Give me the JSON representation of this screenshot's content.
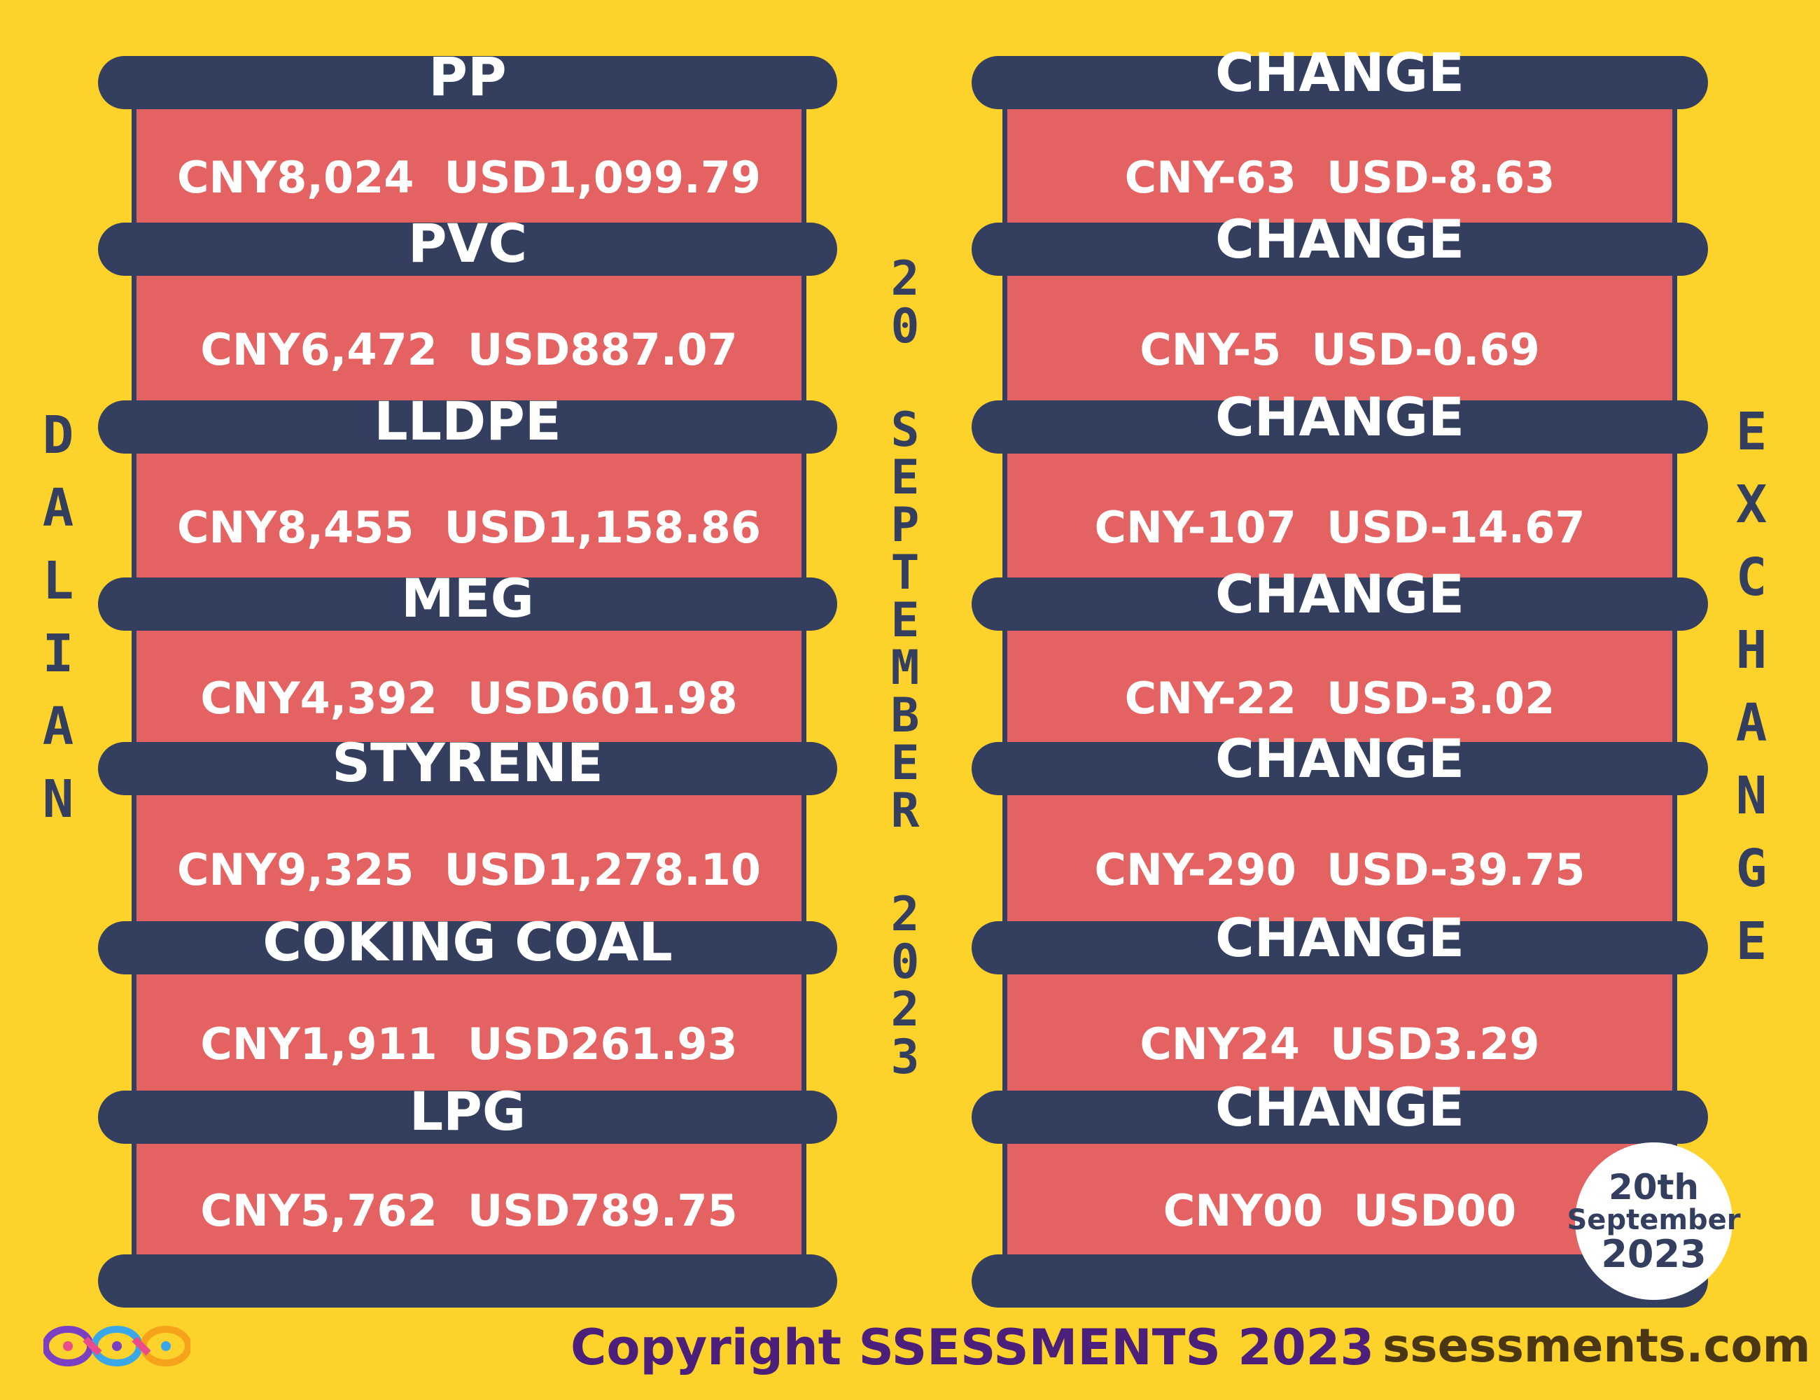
{
  "left_label": "DALIAN",
  "right_label": "EXCHANGE",
  "center_date": {
    "day": "20",
    "month": "SEPTEMBER",
    "year": "2023"
  },
  "commodities": [
    {
      "name": "PP",
      "price": "CNY8,024  USD1,099.79",
      "change_title": "CHANGE",
      "change": "CNY-63  USD-8.63"
    },
    {
      "name": "PVC",
      "price": "CNY6,472  USD887.07",
      "change_title": "CHANGE",
      "change": "CNY-5  USD-0.69"
    },
    {
      "name": "LLDPE",
      "price": "CNY8,455  USD1,158.86",
      "change_title": "CHANGE",
      "change": "CNY-107  USD-14.67"
    },
    {
      "name": "MEG",
      "price": "CNY4,392  USD601.98",
      "change_title": "CHANGE",
      "change": "CNY-22  USD-3.02"
    },
    {
      "name": "STYRENE",
      "price": "CNY9,325  USD1,278.10",
      "change_title": "CHANGE",
      "change": "CNY-290  USD-39.75"
    },
    {
      "name": "COKING COAL",
      "price": "CNY1,911  USD261.93",
      "change_title": "CHANGE",
      "change": "CNY24  USD3.29"
    },
    {
      "name": "LPG",
      "price": "CNY5,762  USD789.75",
      "change_title": "CHANGE",
      "change": "CNY00  USD00"
    }
  ],
  "badge": {
    "line1": "20th",
    "line2": "September",
    "line3": "2023"
  },
  "footer": {
    "copyright": "Copyright SSESSMENTS 2023",
    "website": "ssessments.com"
  },
  "colors": {
    "background": "#fdd22b",
    "bar": "#343f60",
    "panel": "#e46362",
    "text_light": "#ffffff",
    "logo": [
      "#7b3fc2",
      "#e84c8a",
      "#3aa7e8",
      "#f7a21b"
    ]
  },
  "icons": {
    "logo": "ssessments-infinity-logo"
  }
}
